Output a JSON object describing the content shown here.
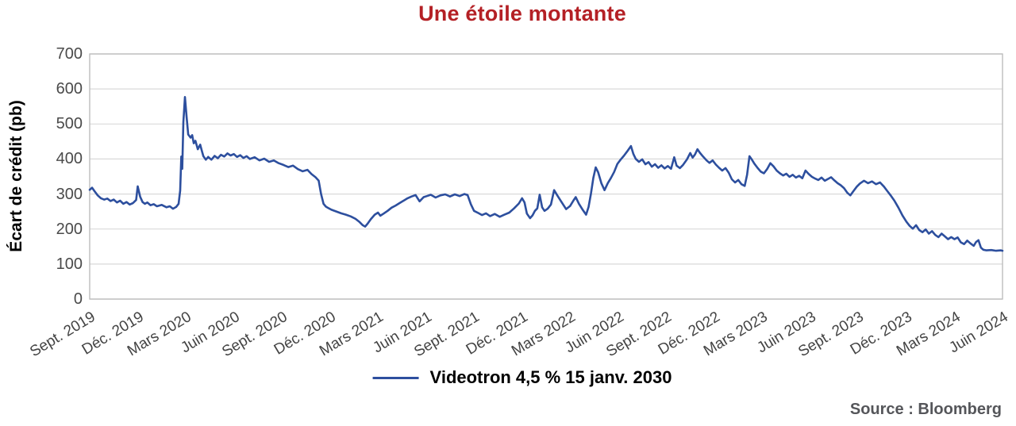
{
  "header": {
    "title": "Une étoile montante",
    "title_color": "#b42025"
  },
  "legend": {
    "label": "Videotron 4,5 % 15 janv. 2030"
  },
  "footer": {
    "source": "Source : Bloomberg"
  },
  "chart_data": {
    "type": "line",
    "title": "Une étoile montante",
    "xlabel": "",
    "ylabel": "Écart de crédit (pb)",
    "ylim": [
      0,
      700
    ],
    "yticks": [
      0,
      100,
      200,
      300,
      400,
      500,
      600,
      700
    ],
    "xticks": [
      "Sept. 2019",
      "Déc. 2019",
      "Mars 2020",
      "Juin 2020",
      "Sept. 2020",
      "Déc. 2020",
      "Mars 2021",
      "Juin 2021",
      "Sept. 2021",
      "Déc. 2021",
      "Mars 2022",
      "Juin 2022",
      "Sept. 2022",
      "Déc. 2022",
      "Mars 2023",
      "Juin 2023",
      "Sept. 2023",
      "Déc. 2023",
      "Mars 2024",
      "Juin 2024"
    ],
    "xtick_spacing_months": 3,
    "x_axis_unit": "months from Sept. 2019",
    "grid": "horizontal",
    "legend_position": "bottom-center",
    "grid_color": "#d9d9d9",
    "border_color": "#bdbdbd",
    "series": [
      {
        "name": "Videotron 4,5 % 15 janv. 2030",
        "color": "#2d4f9e",
        "points": [
          [
            0,
            312
          ],
          [
            0.15,
            318
          ],
          [
            0.3,
            308
          ],
          [
            0.5,
            296
          ],
          [
            0.7,
            288
          ],
          [
            0.9,
            284
          ],
          [
            1.1,
            287
          ],
          [
            1.3,
            280
          ],
          [
            1.5,
            284
          ],
          [
            1.7,
            276
          ],
          [
            1.9,
            281
          ],
          [
            2.1,
            272
          ],
          [
            2.3,
            277
          ],
          [
            2.5,
            270
          ],
          [
            2.7,
            274
          ],
          [
            2.9,
            283
          ],
          [
            3.0,
            322
          ],
          [
            3.15,
            292
          ],
          [
            3.3,
            277
          ],
          [
            3.45,
            272
          ],
          [
            3.6,
            276
          ],
          [
            3.8,
            268
          ],
          [
            4.0,
            271
          ],
          [
            4.2,
            265
          ],
          [
            4.5,
            269
          ],
          [
            4.8,
            262
          ],
          [
            5.0,
            265
          ],
          [
            5.2,
            258
          ],
          [
            5.4,
            263
          ],
          [
            5.55,
            272
          ],
          [
            5.65,
            310
          ],
          [
            5.72,
            407
          ],
          [
            5.78,
            372
          ],
          [
            5.85,
            505
          ],
          [
            5.95,
            577
          ],
          [
            6.05,
            520
          ],
          [
            6.15,
            470
          ],
          [
            6.3,
            461
          ],
          [
            6.4,
            468
          ],
          [
            6.5,
            445
          ],
          [
            6.6,
            452
          ],
          [
            6.75,
            428
          ],
          [
            6.9,
            441
          ],
          [
            7.0,
            424
          ],
          [
            7.1,
            408
          ],
          [
            7.25,
            398
          ],
          [
            7.4,
            406
          ],
          [
            7.6,
            398
          ],
          [
            7.8,
            409
          ],
          [
            8.0,
            402
          ],
          [
            8.2,
            412
          ],
          [
            8.4,
            407
          ],
          [
            8.6,
            416
          ],
          [
            8.8,
            410
          ],
          [
            9.0,
            414
          ],
          [
            9.2,
            406
          ],
          [
            9.4,
            411
          ],
          [
            9.6,
            403
          ],
          [
            9.8,
            408
          ],
          [
            10.0,
            400
          ],
          [
            10.3,
            405
          ],
          [
            10.6,
            396
          ],
          [
            10.9,
            401
          ],
          [
            11.2,
            392
          ],
          [
            11.5,
            396
          ],
          [
            11.8,
            388
          ],
          [
            12.1,
            383
          ],
          [
            12.4,
            377
          ],
          [
            12.7,
            381
          ],
          [
            13.0,
            371
          ],
          [
            13.3,
            365
          ],
          [
            13.6,
            369
          ],
          [
            13.85,
            357
          ],
          [
            14.1,
            348
          ],
          [
            14.3,
            338
          ],
          [
            14.45,
            300
          ],
          [
            14.6,
            272
          ],
          [
            14.75,
            264
          ],
          [
            14.9,
            260
          ],
          [
            15.1,
            255
          ],
          [
            15.4,
            250
          ],
          [
            15.7,
            245
          ],
          [
            16.0,
            241
          ],
          [
            16.3,
            236
          ],
          [
            16.6,
            229
          ],
          [
            16.85,
            220
          ],
          [
            17.05,
            211
          ],
          [
            17.2,
            207
          ],
          [
            17.35,
            215
          ],
          [
            17.55,
            228
          ],
          [
            17.8,
            241
          ],
          [
            18.0,
            247
          ],
          [
            18.15,
            238
          ],
          [
            18.35,
            244
          ],
          [
            18.6,
            252
          ],
          [
            18.85,
            261
          ],
          [
            19.1,
            267
          ],
          [
            19.35,
            274
          ],
          [
            19.6,
            281
          ],
          [
            19.85,
            288
          ],
          [
            20.1,
            293
          ],
          [
            20.35,
            297
          ],
          [
            20.6,
            279
          ],
          [
            20.85,
            291
          ],
          [
            21.05,
            294
          ],
          [
            21.3,
            298
          ],
          [
            21.6,
            290
          ],
          [
            21.9,
            296
          ],
          [
            22.2,
            299
          ],
          [
            22.5,
            293
          ],
          [
            22.8,
            299
          ],
          [
            23.1,
            294
          ],
          [
            23.4,
            300
          ],
          [
            23.6,
            297
          ],
          [
            23.8,
            271
          ],
          [
            24.0,
            252
          ],
          [
            24.25,
            246
          ],
          [
            24.5,
            240
          ],
          [
            24.75,
            245
          ],
          [
            25.0,
            237
          ],
          [
            25.3,
            243
          ],
          [
            25.6,
            235
          ],
          [
            25.9,
            241
          ],
          [
            26.2,
            247
          ],
          [
            26.5,
            259
          ],
          [
            26.8,
            273
          ],
          [
            27.0,
            288
          ],
          [
            27.15,
            276
          ],
          [
            27.3,
            244
          ],
          [
            27.5,
            231
          ],
          [
            27.65,
            239
          ],
          [
            27.8,
            252
          ],
          [
            27.95,
            259
          ],
          [
            28.1,
            298
          ],
          [
            28.25,
            262
          ],
          [
            28.4,
            252
          ],
          [
            28.6,
            258
          ],
          [
            28.8,
            270
          ],
          [
            29.0,
            311
          ],
          [
            29.2,
            296
          ],
          [
            29.45,
            278
          ],
          [
            29.75,
            257
          ],
          [
            30.0,
            266
          ],
          [
            30.2,
            281
          ],
          [
            30.35,
            291
          ],
          [
            30.55,
            272
          ],
          [
            30.8,
            254
          ],
          [
            31.0,
            241
          ],
          [
            31.15,
            263
          ],
          [
            31.3,
            301
          ],
          [
            31.45,
            346
          ],
          [
            31.6,
            376
          ],
          [
            31.75,
            362
          ],
          [
            31.95,
            331
          ],
          [
            32.15,
            311
          ],
          [
            32.35,
            331
          ],
          [
            32.55,
            346
          ],
          [
            32.75,
            363
          ],
          [
            32.95,
            386
          ],
          [
            33.15,
            398
          ],
          [
            33.35,
            409
          ],
          [
            33.55,
            421
          ],
          [
            33.8,
            437
          ],
          [
            33.95,
            414
          ],
          [
            34.1,
            400
          ],
          [
            34.3,
            392
          ],
          [
            34.5,
            399
          ],
          [
            34.7,
            385
          ],
          [
            34.9,
            391
          ],
          [
            35.1,
            378
          ],
          [
            35.3,
            385
          ],
          [
            35.5,
            375
          ],
          [
            35.7,
            382
          ],
          [
            35.9,
            373
          ],
          [
            36.1,
            380
          ],
          [
            36.3,
            372
          ],
          [
            36.5,
            405
          ],
          [
            36.65,
            381
          ],
          [
            36.85,
            374
          ],
          [
            37.05,
            383
          ],
          [
            37.3,
            399
          ],
          [
            37.5,
            417
          ],
          [
            37.65,
            404
          ],
          [
            37.8,
            413
          ],
          [
            37.95,
            428
          ],
          [
            38.1,
            418
          ],
          [
            38.3,
            407
          ],
          [
            38.5,
            397
          ],
          [
            38.7,
            389
          ],
          [
            38.9,
            396
          ],
          [
            39.1,
            384
          ],
          [
            39.3,
            375
          ],
          [
            39.5,
            367
          ],
          [
            39.7,
            374
          ],
          [
            39.9,
            361
          ],
          [
            40.1,
            342
          ],
          [
            40.3,
            333
          ],
          [
            40.5,
            340
          ],
          [
            40.7,
            328
          ],
          [
            40.9,
            323
          ],
          [
            41.05,
            355
          ],
          [
            41.2,
            408
          ],
          [
            41.35,
            398
          ],
          [
            41.5,
            387
          ],
          [
            41.7,
            375
          ],
          [
            41.9,
            364
          ],
          [
            42.1,
            359
          ],
          [
            42.3,
            371
          ],
          [
            42.5,
            388
          ],
          [
            42.7,
            379
          ],
          [
            42.9,
            367
          ],
          [
            43.1,
            359
          ],
          [
            43.3,
            353
          ],
          [
            43.5,
            358
          ],
          [
            43.7,
            349
          ],
          [
            43.9,
            355
          ],
          [
            44.1,
            347
          ],
          [
            44.3,
            352
          ],
          [
            44.5,
            345
          ],
          [
            44.7,
            367
          ],
          [
            44.9,
            357
          ],
          [
            45.1,
            349
          ],
          [
            45.3,
            344
          ],
          [
            45.5,
            340
          ],
          [
            45.7,
            347
          ],
          [
            45.9,
            338
          ],
          [
            46.1,
            343
          ],
          [
            46.3,
            348
          ],
          [
            46.5,
            339
          ],
          [
            46.7,
            331
          ],
          [
            46.9,
            325
          ],
          [
            47.1,
            317
          ],
          [
            47.3,
            304
          ],
          [
            47.5,
            296
          ],
          [
            47.7,
            309
          ],
          [
            47.9,
            321
          ],
          [
            48.1,
            330
          ],
          [
            48.35,
            338
          ],
          [
            48.6,
            331
          ],
          [
            48.85,
            336
          ],
          [
            49.1,
            328
          ],
          [
            49.35,
            333
          ],
          [
            49.6,
            321
          ],
          [
            49.8,
            309
          ],
          [
            50.0,
            297
          ],
          [
            50.25,
            281
          ],
          [
            50.5,
            261
          ],
          [
            50.75,
            239
          ],
          [
            51.0,
            221
          ],
          [
            51.2,
            209
          ],
          [
            51.4,
            201
          ],
          [
            51.6,
            211
          ],
          [
            51.8,
            197
          ],
          [
            52.0,
            191
          ],
          [
            52.2,
            199
          ],
          [
            52.4,
            187
          ],
          [
            52.6,
            194
          ],
          [
            52.8,
            183
          ],
          [
            53.0,
            177
          ],
          [
            53.2,
            187
          ],
          [
            53.4,
            179
          ],
          [
            53.6,
            171
          ],
          [
            53.8,
            177
          ],
          [
            54.0,
            171
          ],
          [
            54.2,
            176
          ],
          [
            54.4,
            162
          ],
          [
            54.6,
            157
          ],
          [
            54.8,
            167
          ],
          [
            55.0,
            159
          ],
          [
            55.2,
            152
          ],
          [
            55.35,
            163
          ],
          [
            55.5,
            168
          ],
          [
            55.65,
            147
          ],
          [
            55.8,
            141
          ],
          [
            56.0,
            139
          ],
          [
            56.3,
            140
          ],
          [
            56.6,
            138
          ],
          [
            56.9,
            139
          ],
          [
            57.0,
            138
          ]
        ]
      }
    ],
    "source": "Source : Bloomberg"
  }
}
